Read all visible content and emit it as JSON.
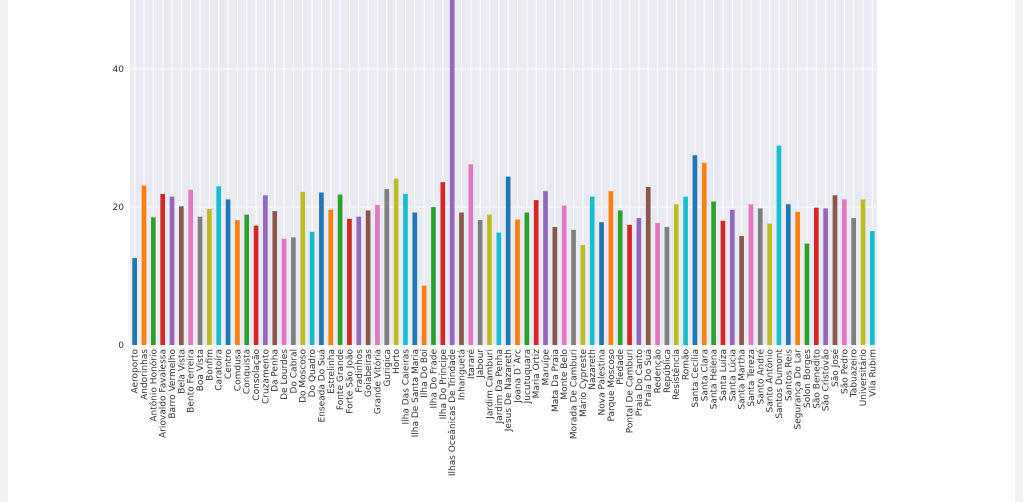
{
  "chart_data": {
    "type": "bar",
    "title": "",
    "xlabel": "",
    "ylabel": "",
    "ylim": [
      0,
      50
    ],
    "yticks": [
      0,
      20,
      40
    ],
    "grid": true,
    "background_color": "#eaeaf2",
    "colors": [
      "#1f77b4",
      "#ff7f0e",
      "#2ca02c",
      "#d62728",
      "#9467bd",
      "#8c564b",
      "#e377c2",
      "#7f7f7f",
      "#bcbd22",
      "#17becf"
    ],
    "categories": [
      "Aeroporto",
      "Andorinhas",
      "Antônio Honório",
      "Ariovaldo Favalessa",
      "Barro Vermelho",
      "Bela Vista",
      "Bento Ferreira",
      "Boa Vista",
      "Bonfim",
      "Caratoíra",
      "Centro",
      "Comdusa",
      "Conquista",
      "Consolação",
      "Cruzamento",
      "Da Penha",
      "De Lourdes",
      "Do Cabral",
      "Do Moscoso",
      "Do Quadro",
      "Enseada Do Suá",
      "Estrelinha",
      "Fonte Grande",
      "Forte São João",
      "Fradinhos",
      "Goiabeiras",
      "Grande Vitória",
      "Gurigica",
      "Horto",
      "Ilha Das Caieiras",
      "Ilha De Santa Maria",
      "Ilha Do Boi",
      "Ilha Do Frade",
      "Ilha Do Príncipe",
      "Ilhas Oceânicas De Trindade",
      "Inhanguetá",
      "Itararé",
      "Jabour",
      "Jardim Camburi",
      "Jardim Da Penha",
      "Jesus De Nazareth",
      "Joana D´Arc",
      "Jucutuquara",
      "Maria Ortiz",
      "Maruípe",
      "Mata Da Praia",
      "Monte Belo",
      "Morada De Camburi",
      "Mário Cypreste",
      "Nazareth",
      "Nova Palestina",
      "Parque Moscoso",
      "Piedade",
      "Pontal De Camburi",
      "Praia Do Canto",
      "Praia Do Suá",
      "Redenção",
      "República",
      "Resistência",
      "Romão",
      "Santa Cecília",
      "Santa Clara",
      "Santa Helena",
      "Santa Luíza",
      "Santa Lúcia",
      "Santa Martha",
      "Santa Tereza",
      "Santo André",
      "Santo Antônio",
      "Santos Dumont",
      "Santos Reis",
      "Segurança Do Lar",
      "Solon Borges",
      "São Benedito",
      "São Cristóvão",
      "São José",
      "São Pedro",
      "Tabuazeiro",
      "Universitário",
      "Vila Rubim"
    ],
    "values": [
      12.6,
      23.1,
      18.5,
      21.9,
      21.5,
      20.1,
      22.5,
      18.6,
      19.7,
      23.0,
      21.1,
      18.1,
      18.9,
      17.3,
      21.7,
      19.4,
      15.4,
      15.6,
      22.2,
      16.4,
      22.1,
      19.6,
      21.8,
      18.3,
      18.6,
      19.5,
      20.3,
      22.6,
      24.1,
      21.9,
      19.2,
      8.6,
      20.0,
      23.6,
      50.0,
      19.2,
      26.2,
      18.1,
      18.9,
      16.3,
      24.4,
      18.2,
      19.2,
      21.0,
      22.3,
      17.1,
      20.2,
      16.7,
      14.5,
      21.5,
      17.8,
      22.3,
      19.5,
      17.4,
      18.4,
      22.9,
      17.7,
      17.1,
      20.4,
      21.5,
      27.5,
      26.4,
      20.8,
      18.0,
      19.6,
      15.8,
      20.4,
      19.8,
      17.6,
      28.9,
      20.4,
      19.3,
      14.7,
      19.9,
      19.8,
      21.7,
      21.1,
      18.4,
      21.1,
      16.5
    ]
  }
}
